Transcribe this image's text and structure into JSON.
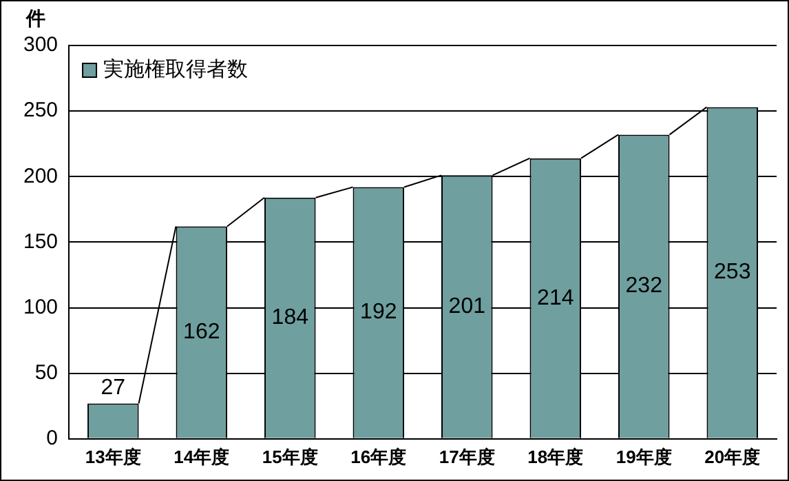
{
  "chart_data": {
    "type": "bar",
    "ylabel": "件",
    "categories": [
      "13年度",
      "14年度",
      "15年度",
      "16年度",
      "17年度",
      "18年度",
      "19年度",
      "20年度"
    ],
    "series": [
      {
        "name": "実施権取得者数",
        "color": "#6f9f9f",
        "values": [
          27,
          162,
          184,
          192,
          201,
          214,
          232,
          253
        ]
      }
    ],
    "ylim": [
      0,
      300
    ],
    "yticks": [
      0,
      50,
      100,
      150,
      200,
      250,
      300
    ],
    "grid": "y",
    "legend": "top left",
    "data_labels": true
  }
}
